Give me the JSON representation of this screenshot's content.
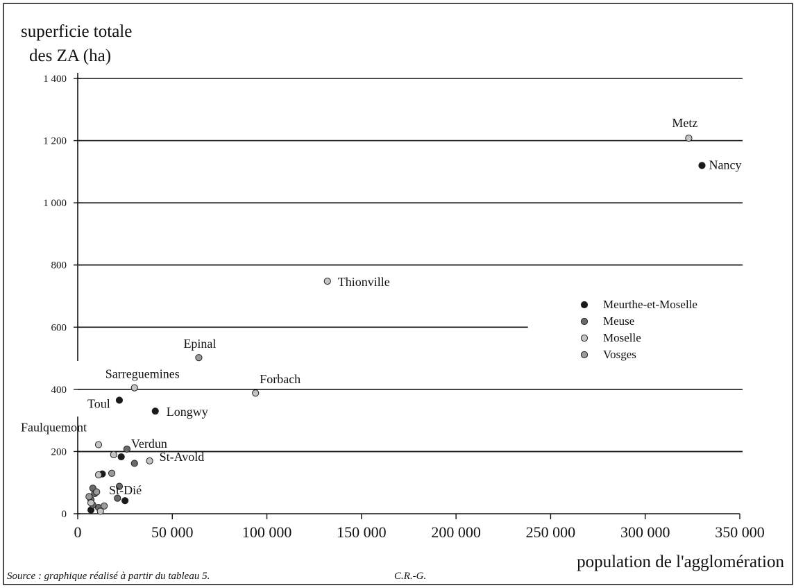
{
  "chart_data": {
    "type": "scatter",
    "ylabel_line1": "superficie totale",
    "ylabel_line2": "des ZA (ha)",
    "xlabel": "population de l'agglomération",
    "xlim": [
      0,
      350000
    ],
    "ylim": [
      0,
      1400
    ],
    "x_ticks": [
      0,
      50000,
      100000,
      150000,
      200000,
      250000,
      300000,
      350000
    ],
    "x_tick_labels": [
      "0",
      "50 000",
      "100 000",
      "150 000",
      "200 000",
      "250 000",
      "300 000",
      "350 000"
    ],
    "y_ticks": [
      0,
      200,
      400,
      600,
      800,
      1000,
      1200,
      1400
    ],
    "y_tick_labels": [
      "0",
      "200",
      "400",
      "600",
      "800",
      "1 000",
      "1 200",
      "1 400"
    ],
    "grid": true,
    "legend_position": "right",
    "series": [
      {
        "name": "Meurthe-et-Moselle",
        "color": "#1a1a1a",
        "points": [
          {
            "x": 330000,
            "y": 1120,
            "label": "Nancy"
          },
          {
            "x": 22000,
            "y": 365,
            "label": "Toul"
          },
          {
            "x": 41000,
            "y": 330,
            "label": "Longwy"
          },
          {
            "x": 23000,
            "y": 183
          },
          {
            "x": 13000,
            "y": 128
          },
          {
            "x": 25000,
            "y": 42
          },
          {
            "x": 7000,
            "y": 12
          }
        ]
      },
      {
        "name": "Meuse",
        "color": "#6a6a6a",
        "points": [
          {
            "x": 26000,
            "y": 208,
            "label": "Verdun"
          },
          {
            "x": 30000,
            "y": 162
          },
          {
            "x": 22000,
            "y": 88
          },
          {
            "x": 21000,
            "y": 50
          },
          {
            "x": 8000,
            "y": 82
          },
          {
            "x": 9000,
            "y": 65
          },
          {
            "x": 7000,
            "y": 45
          },
          {
            "x": 8000,
            "y": 28
          },
          {
            "x": 11000,
            "y": 20
          }
        ]
      },
      {
        "name": "Moselle",
        "color": "#c4c4c4",
        "points": [
          {
            "x": 323000,
            "y": 1208,
            "label": "Metz"
          },
          {
            "x": 132000,
            "y": 748,
            "label": "Thionville"
          },
          {
            "x": 30000,
            "y": 405,
            "label": "Sarreguemines"
          },
          {
            "x": 94000,
            "y": 388,
            "label": "Forbach"
          },
          {
            "x": 11000,
            "y": 222,
            "label": "Faulquemont"
          },
          {
            "x": 38000,
            "y": 170,
            "label": "St-Avold"
          },
          {
            "x": 19000,
            "y": 190
          },
          {
            "x": 11000,
            "y": 125
          },
          {
            "x": 7000,
            "y": 35
          },
          {
            "x": 12000,
            "y": 8
          }
        ]
      },
      {
        "name": "Vosges",
        "color": "#9a9a9a",
        "points": [
          {
            "x": 64000,
            "y": 502,
            "label": "Epinal"
          },
          {
            "x": 18000,
            "y": 130,
            "label": "St-Dié"
          },
          {
            "x": 14000,
            "y": 25
          },
          {
            "x": 10000,
            "y": 70
          },
          {
            "x": 6000,
            "y": 55
          }
        ]
      }
    ]
  },
  "source_note": "Source : graphique réalisé à partir du tableau 5.",
  "credit": "C.R.-G."
}
